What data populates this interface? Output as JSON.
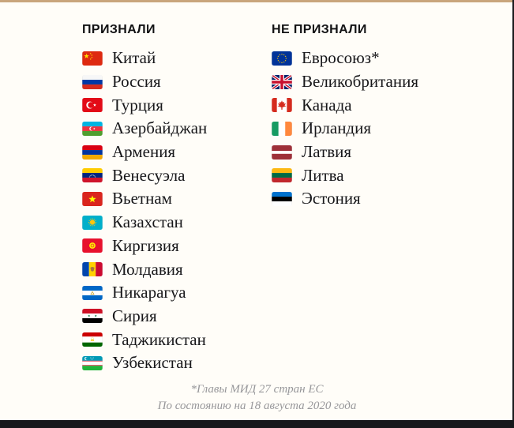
{
  "colors": {
    "background": "#fffdf8",
    "top_accent": "#c9a57c",
    "right_border": "#1a1a1e",
    "bottom_bar": "#17171b",
    "header_text": "#121214",
    "label_text": "#17171a",
    "footnote_text": "#97979a"
  },
  "columns": [
    {
      "header": "ПРИЗНАЛИ",
      "items": [
        {
          "label": "Китай",
          "flag": "china"
        },
        {
          "label": "Россия",
          "flag": "russia"
        },
        {
          "label": "Турция",
          "flag": "turkey"
        },
        {
          "label": "Азербайджан",
          "flag": "azerbaijan"
        },
        {
          "label": "Армения",
          "flag": "armenia"
        },
        {
          "label": "Венесуэла",
          "flag": "venezuela"
        },
        {
          "label": "Вьетнам",
          "flag": "vietnam"
        },
        {
          "label": "Казахстан",
          "flag": "kazakhstan"
        },
        {
          "label": "Киргизия",
          "flag": "kyrgyzstan"
        },
        {
          "label": "Молдавия",
          "flag": "moldova"
        },
        {
          "label": "Никарагуа",
          "flag": "nicaragua"
        },
        {
          "label": "Сирия",
          "flag": "syria"
        },
        {
          "label": "Таджикистан",
          "flag": "tajikistan"
        },
        {
          "label": "Узбекистан",
          "flag": "uzbekistan"
        }
      ]
    },
    {
      "header": "НЕ ПРИЗНАЛИ",
      "items": [
        {
          "label": "Евросоюз*",
          "flag": "european-union"
        },
        {
          "label": "Великобритания",
          "flag": "united-kingdom"
        },
        {
          "label": "Канада",
          "flag": "canada"
        },
        {
          "label": "Ирландия",
          "flag": "ireland"
        },
        {
          "label": "Латвия",
          "flag": "latvia"
        },
        {
          "label": "Литва",
          "flag": "lithuania"
        },
        {
          "label": "Эстония",
          "flag": "estonia"
        }
      ]
    }
  ],
  "footer": {
    "line1": "*Главы МИД 27 стран ЕС",
    "line2": "По состоянию на 18 августа 2020 года"
  }
}
